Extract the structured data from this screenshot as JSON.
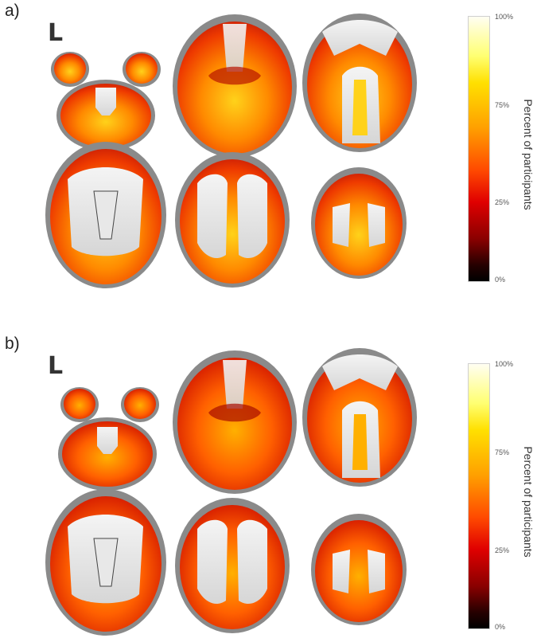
{
  "panels": [
    {
      "label": "a)",
      "side_label": "L",
      "colorbar": {
        "title": "Percent of participants",
        "ticks": [
          "100%",
          "75%",
          "25%",
          "0%"
        ],
        "tick_levels": [
          1.0,
          0.75,
          0.25,
          0.0
        ],
        "stops": [
          "#000000",
          "#8a0000",
          "#e00000",
          "#ff4a00",
          "#ffa000",
          "#ffe000",
          "#ffff70",
          "#fffef2"
        ]
      }
    },
    {
      "label": "b)",
      "side_label": "L",
      "colorbar": {
        "title": "Percent of participants",
        "ticks": [
          "100%",
          "75%",
          "25%",
          "0%"
        ],
        "tick_levels": [
          1.0,
          0.75,
          0.25,
          0.0
        ],
        "stops": [
          "#000000",
          "#8a0000",
          "#e00000",
          "#ff4a00",
          "#ffa000",
          "#ffe000",
          "#ffff70",
          "#fffef2"
        ]
      }
    }
  ],
  "colors": {
    "brain_edge": "#7a7a7a",
    "white_matter": "#e4e4e4",
    "heat_low": "#c21807",
    "heat_mid": "#ff6a00",
    "heat_high": "#ffc400"
  }
}
